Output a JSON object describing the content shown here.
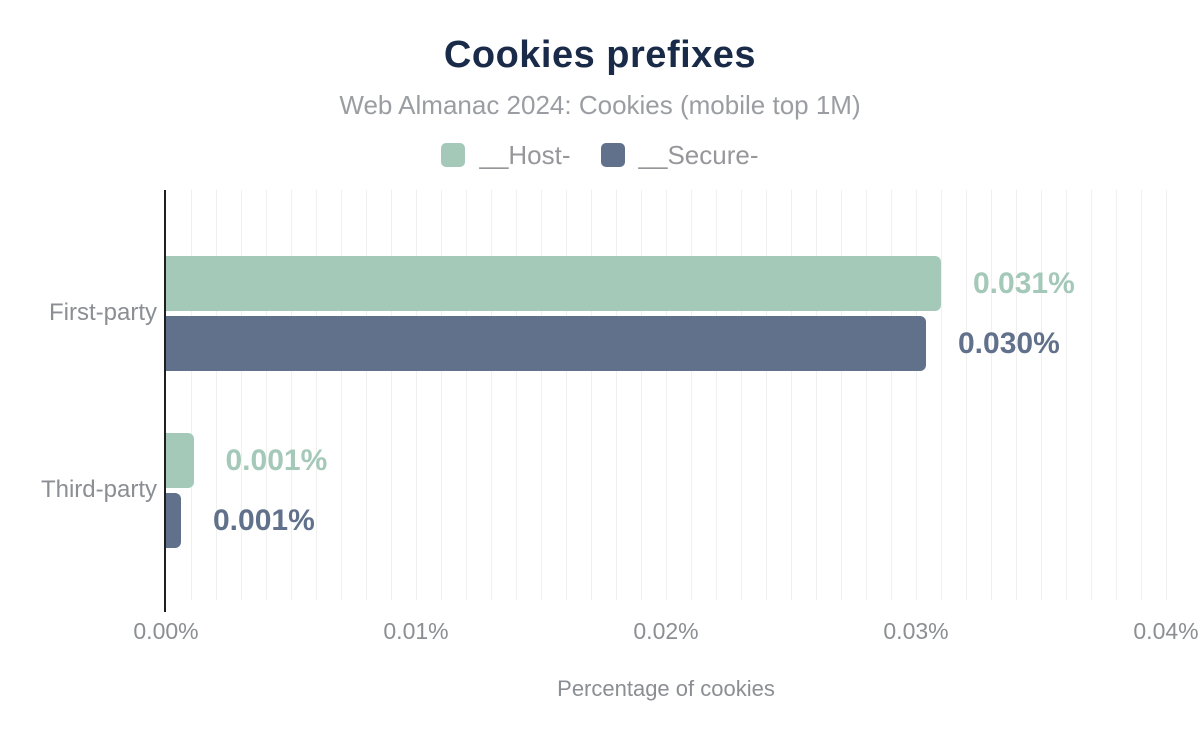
{
  "page": {
    "background": "#ffffff"
  },
  "colors": {
    "title_navy": "#1a2b49",
    "subtitle_gray": "#9a9da2",
    "label_gray": "#8b8e93",
    "legend_text_gray": "#97979b",
    "axis_line": "#1f1f1f",
    "gridline": "#f0f0f1",
    "host_green": "#a5c9b8",
    "secure_slate": "#61718b"
  },
  "chart_data": {
    "type": "bar",
    "orientation": "horizontal",
    "title": "Cookies prefixes",
    "subtitle": "Web Almanac 2024: Cookies (mobile top 1M)",
    "xlabel": "Percentage of cookies",
    "xlim": [
      0,
      0.04
    ],
    "x_tick_labels": [
      "0.00%",
      "0.01%",
      "0.02%",
      "0.03%",
      "0.04%"
    ],
    "x_tick_values": [
      0,
      0.01,
      0.02,
      0.03,
      0.04
    ],
    "gridline_step": 0.001,
    "grid": true,
    "legend_position": "top-center",
    "categories": [
      "First-party",
      "Third-party"
    ],
    "series": [
      {
        "name": "__Host-",
        "color": "#a5c9b8",
        "values": [
          0.031,
          0.001
        ],
        "value_labels": [
          "0.031%",
          "0.001%"
        ],
        "bar_lengths_pct": [
          0.031,
          0.0011
        ]
      },
      {
        "name": "__Secure-",
        "color": "#61718b",
        "values": [
          0.03,
          0.001
        ],
        "value_labels": [
          "0.030%",
          "0.001%"
        ],
        "bar_lengths_pct": [
          0.0304,
          0.0006
        ]
      }
    ]
  }
}
